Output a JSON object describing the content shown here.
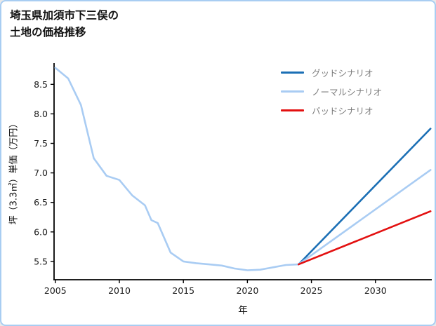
{
  "page": {
    "background": "#ffffff",
    "border_color": "#a8cdf2"
  },
  "title": {
    "line1": "埼玉県加須市下三俣の",
    "line2": "土地の価格推移"
  },
  "chart_data": {
    "type": "line",
    "title": "埼玉県加須市下三俣の土地の価格推移",
    "xlabel": "年",
    "ylabel": "坪（3.3㎡）単価（万円）",
    "xlim": [
      2004.9,
      2034.4
    ],
    "ylim": [
      5.19,
      8.86
    ],
    "xticks": [
      2005,
      2010,
      2015,
      2020,
      2025,
      2030
    ],
    "yticks": [
      5.5,
      6.0,
      6.5,
      7.0,
      7.5,
      8.0,
      8.5
    ],
    "grid": false,
    "legend_position": "upper right",
    "axis_color": "#000000",
    "tick_label_color": "#1a1a1a",
    "legend_text_color": "#7d7d7d",
    "series": [
      {
        "name": "historical-price",
        "label": "",
        "in_legend": false,
        "color": "#a9ccf3",
        "x": [
          2005,
          2006,
          2007,
          2008,
          2009,
          2010,
          2011,
          2012,
          2012.5,
          2013,
          2014,
          2015,
          2016,
          2017,
          2018,
          2019,
          2020,
          2021,
          2022,
          2023,
          2024
        ],
        "y": [
          8.78,
          8.6,
          8.15,
          7.25,
          6.95,
          6.88,
          6.62,
          6.45,
          6.2,
          6.15,
          5.65,
          5.5,
          5.47,
          5.45,
          5.43,
          5.38,
          5.35,
          5.36,
          5.4,
          5.44,
          5.45
        ]
      },
      {
        "name": "good-scenario",
        "label": "グッドシナリオ",
        "in_legend": true,
        "color": "#1b6fb5",
        "x": [
          2024,
          2034.3
        ],
        "y": [
          5.45,
          7.75
        ]
      },
      {
        "name": "normal-scenario",
        "label": "ノーマルシナリオ",
        "in_legend": true,
        "color": "#a9ccf3",
        "x": [
          2024,
          2034.3
        ],
        "y": [
          5.45,
          7.05
        ]
      },
      {
        "name": "bad-scenario",
        "label": "バッドシナリオ",
        "in_legend": true,
        "color": "#e31010",
        "x": [
          2024,
          2034.3
        ],
        "y": [
          5.45,
          6.35
        ]
      }
    ]
  }
}
